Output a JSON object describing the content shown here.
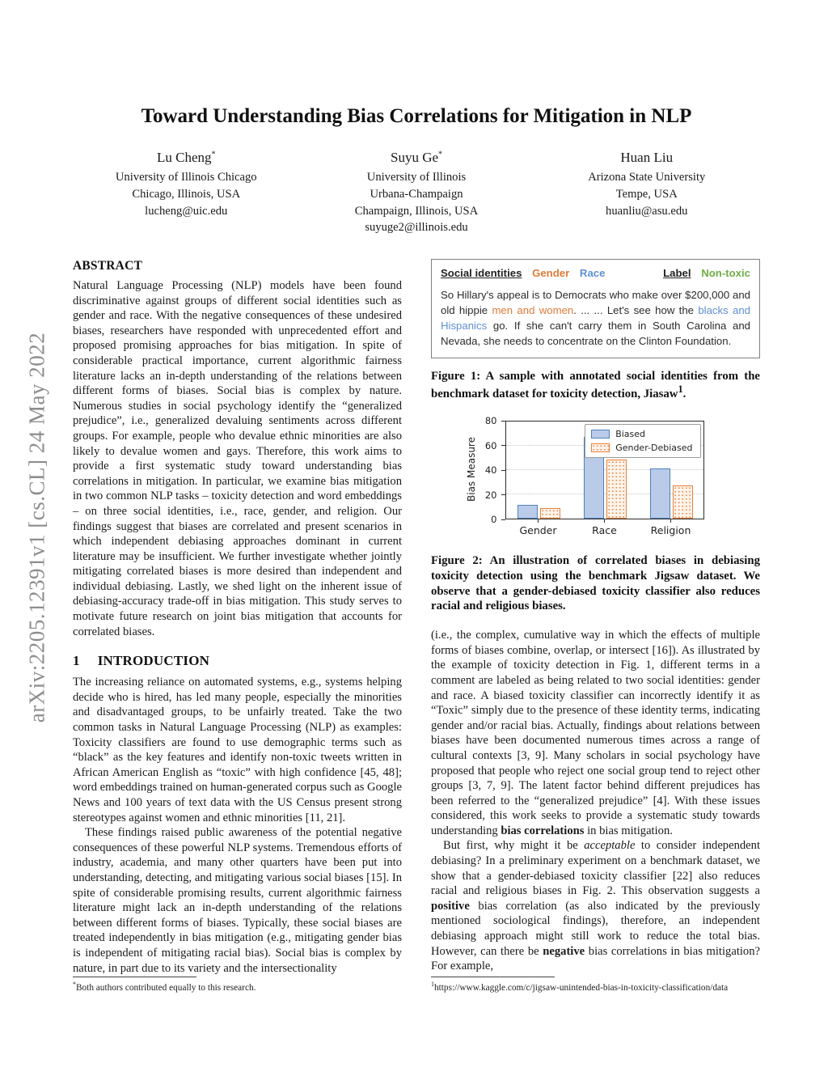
{
  "watermark": "arXiv:2205.12391v1  [cs.CL]  24 May 2022",
  "title": "Toward Understanding Bias Correlations for Mitigation in NLP",
  "authors": [
    {
      "name": "Lu Cheng",
      "marker": "*",
      "lines": [
        "University of Illinois Chicago",
        "Chicago, Illinois, USA"
      ],
      "email": "lucheng@uic.edu"
    },
    {
      "name": "Suyu Ge",
      "marker": "*",
      "lines": [
        "University of Illinois",
        "Urbana-Champaign",
        "Champaign, Illinois, USA"
      ],
      "email": "suyuge2@illinois.edu"
    },
    {
      "name": "Huan Liu",
      "marker": "",
      "lines": [
        "Arizona State University",
        "Tempe, USA"
      ],
      "email": "huanliu@asu.edu"
    }
  ],
  "abstract": {
    "heading": "ABSTRACT",
    "body": "Natural Language Processing (NLP) models have been found discriminative against groups of different social identities such as gender and race. With the negative consequences of these undesired biases, researchers have responded with unprecedented effort and proposed promising approaches for bias mitigation. In spite of considerable practical importance, current algorithmic fairness literature lacks an in-depth understanding of the relations between different forms of biases. Social bias is complex by nature. Numerous studies in social psychology identify the “generalized prejudice”, i.e., generalized devaluing sentiments across different groups. For example, people who devalue ethnic minorities are also likely to devalue women and gays. Therefore, this work aims to provide a first systematic study toward understanding bias correlations in mitigation. In particular, we examine bias mitigation in two common NLP tasks – toxicity detection and word embeddings – on three social identities, i.e., race, gender, and religion. Our findings suggest that biases are correlated and present scenarios in which independent debiasing approaches dominant in current literature may be insufficient. We further investigate whether jointly mitigating correlated biases is more desired than independent and individual debiasing. Lastly, we shed light on the inherent issue of debiasing-accuracy trade-off in bias mitigation. This study serves to motivate future research on joint bias mitigation that accounts for correlated biases."
  },
  "introduction": {
    "number": "1",
    "heading": "INTRODUCTION",
    "p1": "The increasing reliance on automated systems, e.g., systems helping decide who is hired, has led many people, especially the minorities and disadvantaged groups, to be unfairly treated. Take the two common tasks in Natural Language Processing (NLP) as examples: Toxicity classifiers are found to use demographic terms such as “black” as the key features and identify non-toxic tweets written in African American English as “toxic” with high confidence [45, 48]; word embeddings trained on human-generated corpus such as Google News and 100 years of text data with the US Census present strong stereotypes against women and ethnic minorities [11, 21].",
    "p2": "These findings raised public awareness of the potential negative consequences of these powerful NLP systems. Tremendous efforts of industry, academia, and many other quarters have been put into understanding, detecting, and mitigating various social biases [15]. In spite of considerable promising results, current algorithmic fairness literature might lack an in-depth understanding of the relations between different forms of biases. Typically, these social biases are treated independently in bias mitigation (e.g., mitigating gender bias is independent of mitigating racial bias). Social bias is complex by nature, in part due to its variety and the intersectionality"
  },
  "figure1": {
    "header": {
      "left_title": "Social identities",
      "gender_tag": "Gender",
      "race_tag": "Race",
      "label_title": "Label",
      "label_value": "Non-toxic"
    },
    "sample_rich": [
      {
        "t": "So Hillary's appeal is to Democrats who make over $200,000 and old hippie "
      },
      {
        "t": "men and women",
        "c": "#e07b39"
      },
      {
        "t": ". ... ... Let's see how the "
      },
      {
        "t": "blacks and Hispanics",
        "c": "#5e8fd4"
      },
      {
        "t": " go. If she can't carry them in South Carolina and Nevada, she needs to concentrate on the Clinton Foundation."
      }
    ],
    "caption_rich": [
      {
        "t": "Figure 1: A sample with annotated social identities from the benchmark dataset for toxicity detection, Jiasaw"
      },
      {
        "t": "1",
        "sup": true
      },
      {
        "t": "."
      }
    ]
  },
  "figure2": {
    "caption": "Figure 2: An illustration of correlated biases in debiasing toxicity detection using the benchmark Jigsaw dataset. We observe that a gender-debiased toxicity classifier also reduces racial and religious biases."
  },
  "right_column": {
    "p1_rich": [
      {
        "t": "(i.e., the complex, cumulative way in which the effects of multiple forms of biases combine, overlap, or intersect [16]). As illustrated by the example of toxicity detection in Fig. 1, different terms in a comment are labeled as being related to two social identities: gender and race. A biased toxicity classifier can incorrectly identify it as “Toxic” simply due to the presence of these identity terms, indicating gender and/or racial bias. Actually, findings about relations between biases have been documented numerous times across a range of cultural contexts [3, 9]. Many scholars in social psychology have proposed that people who reject one social group tend to reject other groups [3, 7, 9]. The latent factor behind different prejudices has been referred to the “generalized prejudice” [4]. With these issues considered, this work seeks to provide a systematic study towards understanding "
      },
      {
        "t": "bias correlations",
        "b": true
      },
      {
        "t": " in bias mitigation."
      }
    ],
    "p2_rich": [
      {
        "t": "But first, why might it be "
      },
      {
        "t": "acceptable",
        "i": true
      },
      {
        "t": " to consider independent debiasing? In a preliminary experiment on a benchmark dataset, we show that a gender-debiased toxicity classifier [22] also reduces racial and religious biases in Fig. 2. This observation suggests a "
      },
      {
        "t": "positive",
        "b": true
      },
      {
        "t": " bias correlation (as also indicated by the previously mentioned sociological findings), therefore, an independent debiasing approach might still work to reduce the total bias. However, can there be "
      },
      {
        "t": "negative",
        "b": true
      },
      {
        "t": " bias correlations in bias mitigation? For example,"
      }
    ]
  },
  "footnotes": {
    "left_marker": "*",
    "left_text": "Both authors contributed equally to this research.",
    "right_marker": "1",
    "right_text": "https://www.kaggle.com/c/jigsaw-unintended-bias-in-toxicity-classification/data"
  },
  "colors": {
    "orange": "#e07b39",
    "blue_text": "#5e8fd4",
    "green": "#6fad47",
    "bar_blue_fill": "#b9cbe9",
    "bar_blue_border": "#4f81bd",
    "bar_orange": "#e8803a",
    "watermark_gray": "#8d8d8d"
  },
  "chart_data": {
    "type": "bar",
    "title": "",
    "categories": [
      "Gender",
      "Race",
      "Religion"
    ],
    "series": [
      {
        "name": "Biased",
        "values": [
          11,
          66,
          41
        ]
      },
      {
        "name": "Gender-Debiased",
        "values": [
          8.5,
          48,
          27
        ]
      }
    ],
    "xlabel": "",
    "ylabel": "Bias Measure",
    "ylim": [
      0,
      80
    ],
    "yticks": [
      0,
      20,
      40,
      60,
      80
    ],
    "grid": "horizontal-dotted",
    "legend_position": "upper-right"
  }
}
